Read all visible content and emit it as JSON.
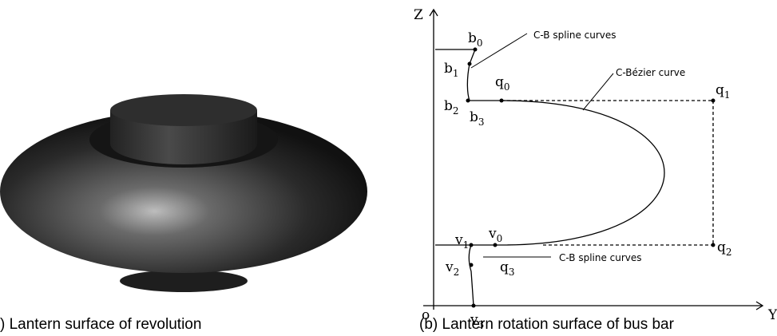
{
  "figure": {
    "panel_a": {
      "caption": ") Lantern surface of revolution"
    },
    "panel_b": {
      "caption": "(b) Lantern rotation surface of bus bar",
      "axes": {
        "z": "Z",
        "y": "Y",
        "origin": "o"
      },
      "points": [
        {
          "base": "b",
          "sub": "0"
        },
        {
          "base": "b",
          "sub": "1"
        },
        {
          "base": "b",
          "sub": "2"
        },
        {
          "base": "b",
          "sub": "3"
        },
        {
          "base": "q",
          "sub": "0"
        },
        {
          "base": "q",
          "sub": "1"
        },
        {
          "base": "q",
          "sub": "2"
        },
        {
          "base": "q",
          "sub": "3"
        },
        {
          "base": "v",
          "sub": "0"
        },
        {
          "base": "v",
          "sub": "1"
        },
        {
          "base": "v",
          "sub": "2"
        },
        {
          "base": "v",
          "sub": "3"
        }
      ],
      "annotations": [
        "C-B spline curves",
        "C-Bézier curve",
        "C-B spline curves"
      ]
    }
  }
}
